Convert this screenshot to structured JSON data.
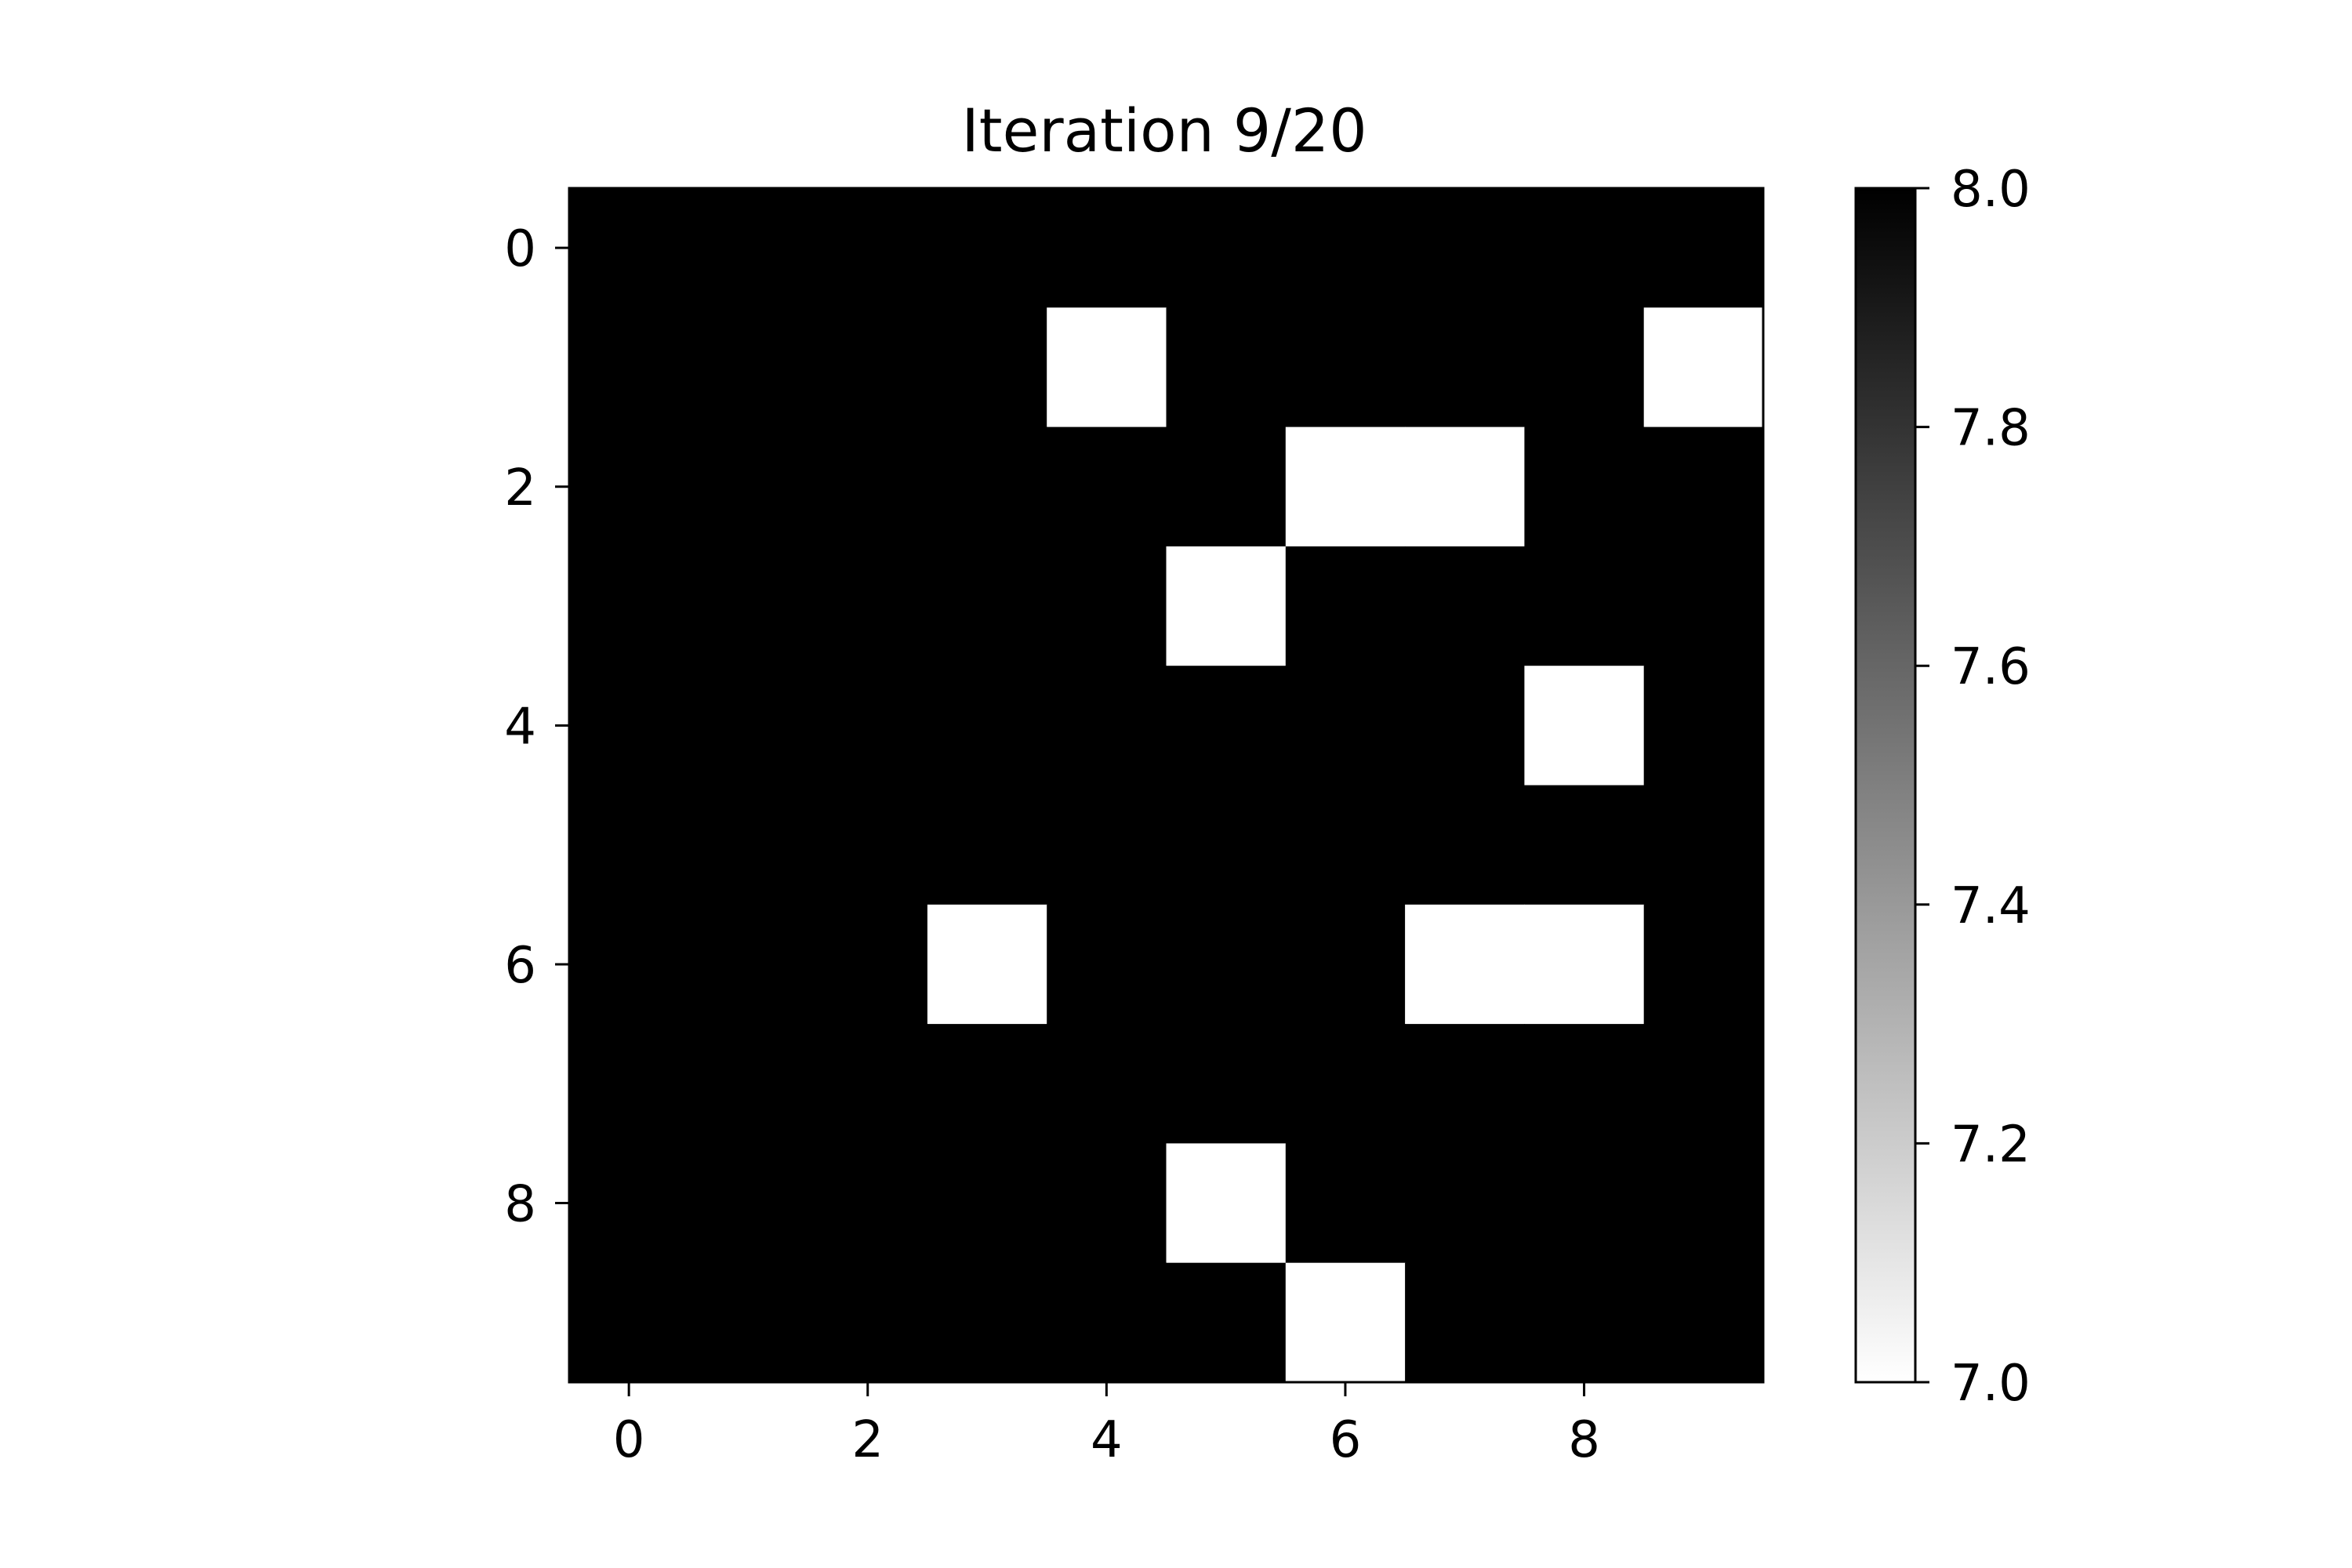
{
  "chart_data": {
    "type": "heatmap",
    "title": "Iteration 9/20",
    "xlabel": "",
    "ylabel": "",
    "rows": 10,
    "cols": 10,
    "xlim": [
      -0.5,
      9.5
    ],
    "ylim": [
      9.5,
      -0.5
    ],
    "x_ticks": [
      0,
      2,
      4,
      6,
      8
    ],
    "y_ticks": [
      0,
      2,
      4,
      6,
      8
    ],
    "colormap": "gray_r",
    "colorbar": {
      "min": 7.0,
      "max": 8.0,
      "ticks": [
        7.0,
        7.2,
        7.4,
        7.6,
        7.8,
        8.0
      ],
      "tick_labels": [
        "7.0",
        "7.2",
        "7.4",
        "7.6",
        "7.8",
        "8.0"
      ]
    },
    "values": [
      [
        8,
        8,
        8,
        8,
        8,
        8,
        8,
        8,
        8,
        8
      ],
      [
        8,
        8,
        8,
        8,
        7,
        8,
        8,
        8,
        8,
        7
      ],
      [
        8,
        8,
        8,
        8,
        8,
        8,
        7,
        7,
        8,
        8
      ],
      [
        8,
        8,
        8,
        8,
        8,
        7,
        8,
        8,
        8,
        8
      ],
      [
        8,
        8,
        8,
        8,
        8,
        8,
        8,
        8,
        7,
        8
      ],
      [
        8,
        8,
        8,
        8,
        8,
        8,
        8,
        8,
        8,
        8
      ],
      [
        8,
        8,
        8,
        7,
        8,
        8,
        8,
        7,
        7,
        8
      ],
      [
        8,
        8,
        8,
        8,
        8,
        8,
        8,
        8,
        8,
        8
      ],
      [
        8,
        8,
        8,
        8,
        8,
        7,
        8,
        8,
        8,
        8
      ],
      [
        8,
        8,
        8,
        8,
        8,
        8,
        7,
        8,
        8,
        8
      ]
    ],
    "grid": false,
    "legend": "none"
  }
}
